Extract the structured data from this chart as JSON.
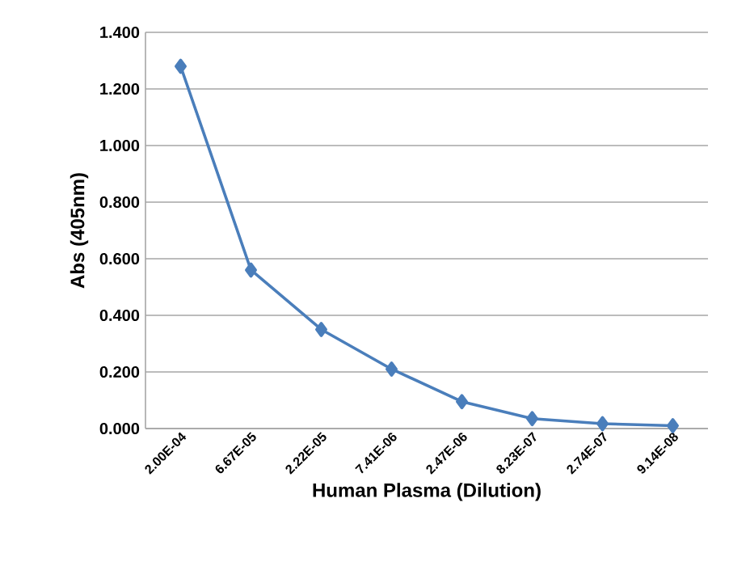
{
  "chart_data": {
    "type": "line",
    "xlabel": "Human Plasma (Dilution)",
    "ylabel": "Abs (405nm)",
    "categories": [
      "2.00E-04",
      "6.67E-05",
      "2.22E-05",
      "7.41E-06",
      "2.47E-06",
      "8.23E-07",
      "2.74E-07",
      "9.14E-08"
    ],
    "series": [
      {
        "color": "#4a7ebb",
        "values": [
          1.28,
          0.56,
          0.35,
          0.21,
          0.095,
          0.035,
          0.017,
          0.01
        ]
      }
    ],
    "ylim": [
      0,
      1.4
    ],
    "yticks": [
      {
        "value": 0,
        "label": "0.000"
      },
      {
        "value": 0.2,
        "label": "0.200"
      },
      {
        "value": 0.4,
        "label": "0.400"
      },
      {
        "value": 0.6,
        "label": "0.600"
      },
      {
        "value": 0.8,
        "label": "0.800"
      },
      {
        "value": 1.0,
        "label": "1.000"
      },
      {
        "value": 1.2,
        "label": "1.200"
      },
      {
        "value": 1.4,
        "label": "1.400"
      }
    ],
    "grid": "y",
    "marker": "diamond",
    "line_style": "solid"
  }
}
